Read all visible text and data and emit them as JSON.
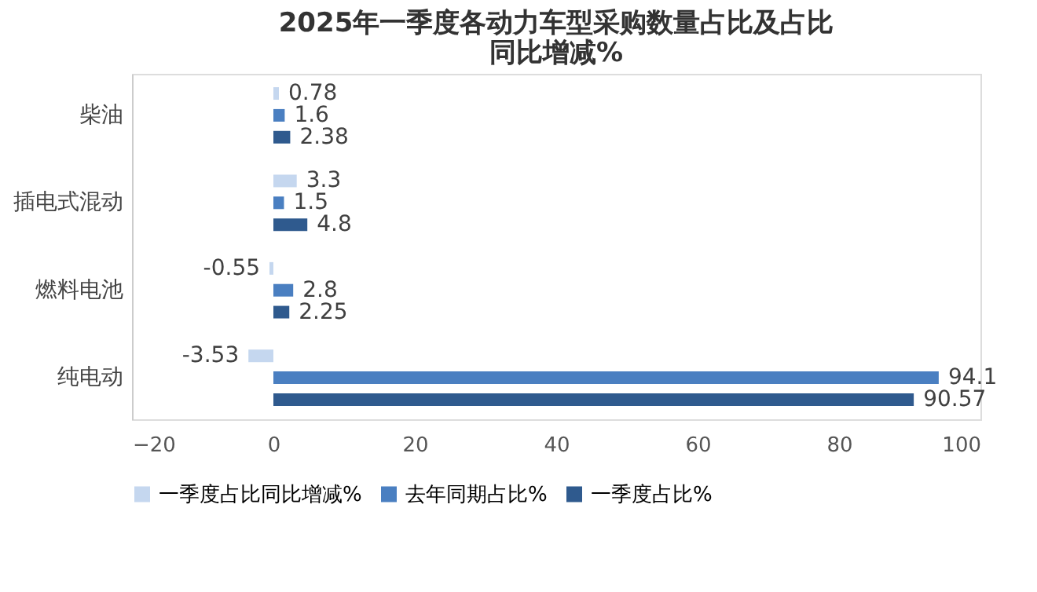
{
  "chart_data": {
    "type": "bar",
    "orientation": "horizontal",
    "title": "2025年一季度各动力车型采购数量占比及占比同比增减%",
    "categories": [
      "柴油",
      "插电式混动",
      "燃料电池",
      "纯电动"
    ],
    "series": [
      {
        "name": "一季度占比同比增减%",
        "color": "#c5d7ef",
        "values": [
          0.78,
          3.3,
          -0.55,
          -3.53
        ]
      },
      {
        "name": "去年同期占比%",
        "color": "#4a7fc1",
        "values": [
          1.6,
          1.5,
          2.8,
          94.1
        ]
      },
      {
        "name": "一季度占比%",
        "color": "#2f5a8e",
        "values": [
          2.38,
          4.8,
          2.25,
          90.57
        ]
      }
    ],
    "xlim": [
      -20,
      100
    ],
    "xticks": [
      -20,
      0,
      20,
      40,
      60,
      80,
      100
    ],
    "data_labels": true,
    "grid": false,
    "legend": "bottom"
  }
}
